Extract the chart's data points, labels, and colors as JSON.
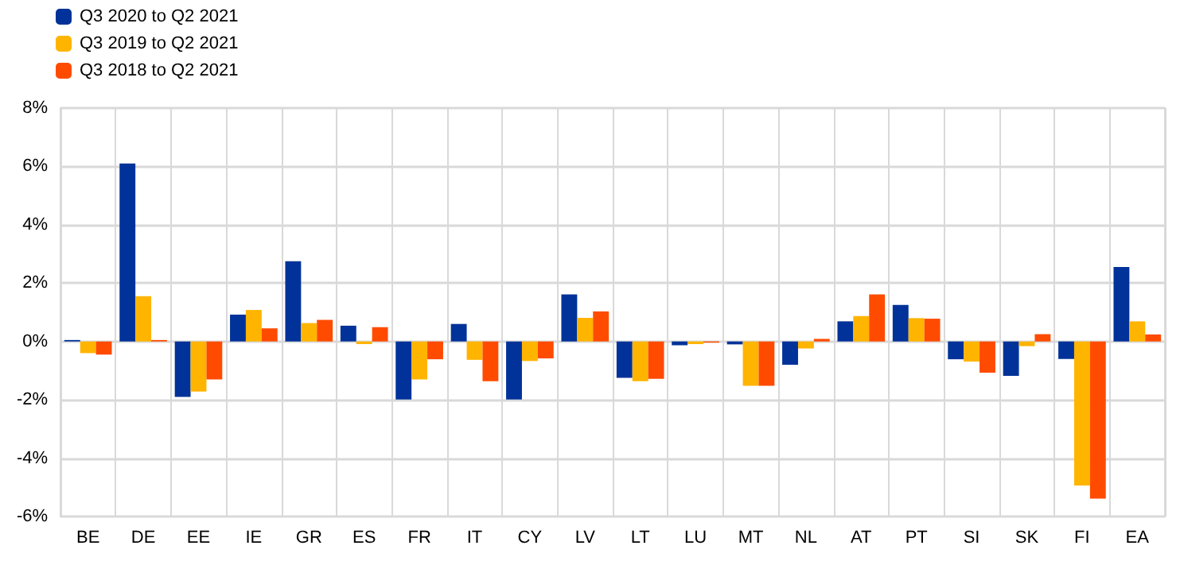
{
  "chart_data": {
    "type": "bar",
    "categories": [
      "BE",
      "DE",
      "EE",
      "IE",
      "GR",
      "ES",
      "FR",
      "IT",
      "CY",
      "LV",
      "LT",
      "LU",
      "MT",
      "NL",
      "AT",
      "PT",
      "SI",
      "SK",
      "FI",
      "EA"
    ],
    "series": [
      {
        "name": "Q3 2020 to Q2 2021",
        "color": "#003299",
        "values": [
          0.05,
          6.1,
          -1.9,
          0.92,
          2.75,
          0.54,
          -1.99,
          0.6,
          -1.99,
          1.61,
          -1.25,
          -0.13,
          -0.1,
          -0.8,
          0.69,
          1.25,
          -0.61,
          -1.18,
          -0.6,
          2.55
        ]
      },
      {
        "name": "Q3 2019 to Q2 2021",
        "color": "#ffb400",
        "values": [
          -0.4,
          1.55,
          -1.72,
          1.08,
          0.63,
          -0.09,
          -1.3,
          -0.63,
          -0.67,
          0.81,
          -1.36,
          -0.09,
          -1.52,
          -0.24,
          0.87,
          0.8,
          -0.69,
          -0.16,
          -4.94,
          0.69
        ]
      },
      {
        "name": "Q3 2018 to Q2 2021",
        "color": "#ff4b00",
        "values": [
          -0.45,
          0.05,
          -1.3,
          0.45,
          0.74,
          0.49,
          -0.61,
          -1.36,
          -0.58,
          1.03,
          -1.28,
          -0.04,
          -1.52,
          0.09,
          1.61,
          0.78,
          -1.07,
          0.25,
          -5.39,
          0.24
        ]
      }
    ],
    "ylim": [
      -6,
      8
    ],
    "yticks": [
      {
        "value": -6,
        "label": "-6%"
      },
      {
        "value": -4,
        "label": "-4%"
      },
      {
        "value": -2,
        "label": "-2%"
      },
      {
        "value": 0,
        "label": "0%"
      },
      {
        "value": 2,
        "label": "2%"
      },
      {
        "value": 4,
        "label": "4%"
      },
      {
        "value": 6,
        "label": "6%"
      },
      {
        "value": 8,
        "label": "8%"
      }
    ],
    "grid": true,
    "legend": "top left"
  }
}
